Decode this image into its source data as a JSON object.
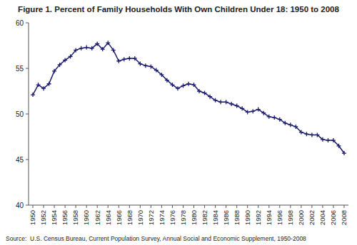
{
  "chart_data": {
    "type": "line",
    "title": "Figure 1. Percent of Family Households With Own Children Under 18: 1950 to 2008",
    "annotations": [
      "Source:  U.S. Census Bureau, Current Population Survey, Annual Social and Economic Supplement, 1950-2008"
    ],
    "x": [
      1950,
      1951,
      1952,
      1953,
      1954,
      1955,
      1956,
      1957,
      1958,
      1959,
      1960,
      1961,
      1962,
      1963,
      1964,
      1965,
      1966,
      1967,
      1968,
      1969,
      1970,
      1971,
      1972,
      1973,
      1974,
      1975,
      1976,
      1977,
      1978,
      1979,
      1980,
      1981,
      1982,
      1983,
      1984,
      1985,
      1986,
      1987,
      1988,
      1989,
      1990,
      1991,
      1992,
      1993,
      1994,
      1995,
      1996,
      1997,
      1998,
      1999,
      2000,
      2001,
      2002,
      2003,
      2004,
      2005,
      2006,
      2007,
      2008
    ],
    "values": [
      52.1,
      53.2,
      52.8,
      53.3,
      54.7,
      55.4,
      55.9,
      56.3,
      57.0,
      57.2,
      57.3,
      57.2,
      57.7,
      57.1,
      57.8,
      57.0,
      55.8,
      56.0,
      56.1,
      56.1,
      55.5,
      55.3,
      55.2,
      54.8,
      54.3,
      53.7,
      53.2,
      52.8,
      53.1,
      53.3,
      53.2,
      52.5,
      52.3,
      51.9,
      51.5,
      51.3,
      51.3,
      51.1,
      50.9,
      50.6,
      50.2,
      50.3,
      50.5,
      50.1,
      49.7,
      49.6,
      49.4,
      49.0,
      48.8,
      48.6,
      48.0,
      47.8,
      47.7,
      47.7,
      47.2,
      47.1,
      47.1,
      46.5,
      45.7
    ],
    "color": "#1a1a6e",
    "marker": "plus",
    "xlim": [
      1949.2,
      2008.8
    ],
    "xticks": [
      1950,
      1952,
      1954,
      1956,
      1958,
      1960,
      1962,
      1964,
      1966,
      1968,
      1970,
      1972,
      1974,
      1976,
      1978,
      1980,
      1982,
      1984,
      1986,
      1988,
      1990,
      1992,
      1994,
      1996,
      1998,
      2000,
      2002,
      2004,
      2006,
      2008
    ],
    "ylim": [
      40,
      60
    ],
    "yticks": [
      40,
      45,
      50,
      55,
      60
    ],
    "grid": false
  }
}
